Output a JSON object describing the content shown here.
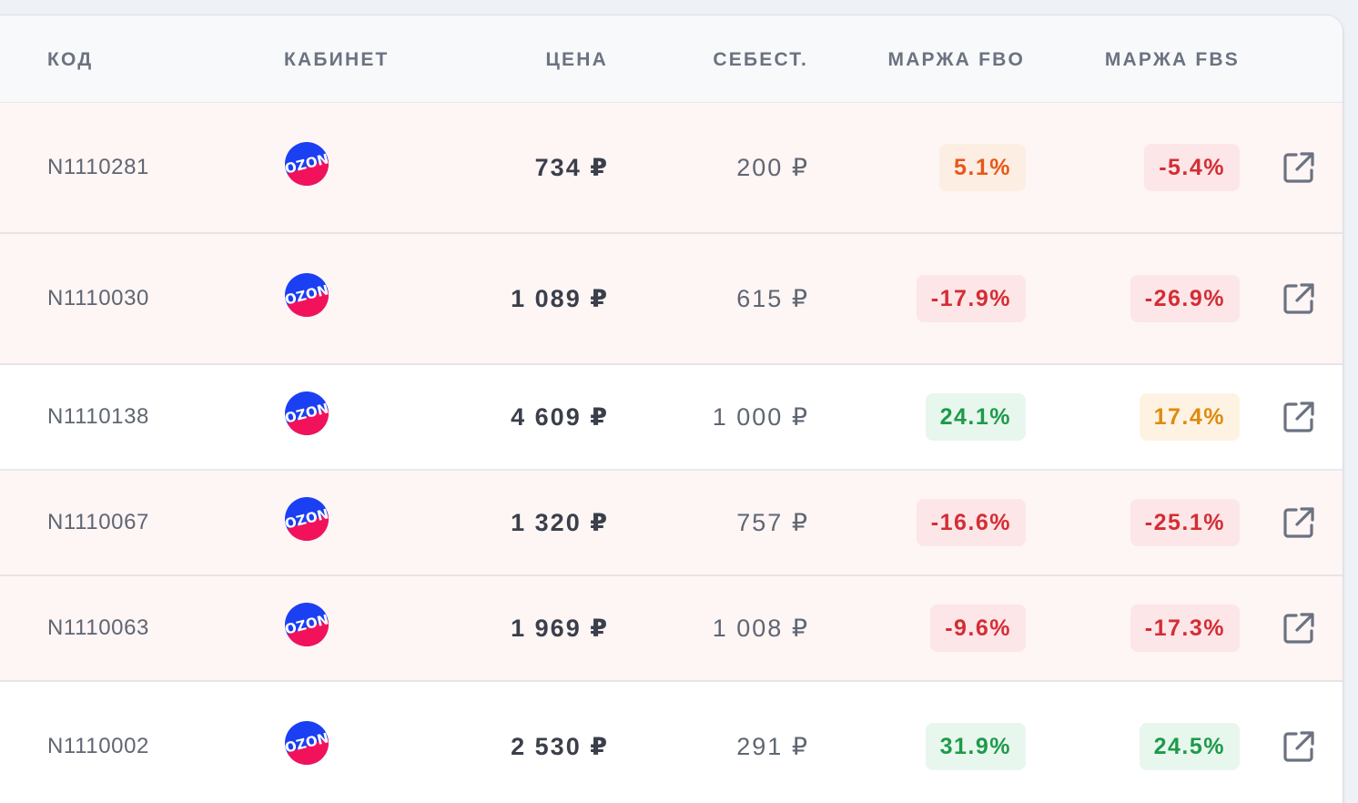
{
  "columns": {
    "code": "КОД",
    "cabinet": "КАБИНЕТ",
    "price": "ЦЕНА",
    "cost": "СЕБЕСТ.",
    "margin_fbo": "МАРЖА FBO",
    "margin_fbs": "МАРЖА FBS"
  },
  "cabinet_logo": {
    "text": "OZON",
    "colors": [
      "#1b3ff2",
      "#f2125c"
    ]
  },
  "status_colors": {
    "red": "#d42d35",
    "orange": "#e8571a",
    "amber": "#de8a10",
    "green": "#1e9a4a",
    "row_alert_bg": "#fef5f5"
  },
  "icons": {
    "row_action": "external-link-icon"
  },
  "rows": [
    {
      "code": "N1110281",
      "price": "734 ₽",
      "cost": "200 ₽",
      "fbo": "5.1%",
      "fbs": "-5.4%",
      "fbo_tone": "orange",
      "fbs_tone": "red",
      "alert": true
    },
    {
      "code": "N1110030",
      "price": "1 089 ₽",
      "cost": "615 ₽",
      "fbo": "-17.9%",
      "fbs": "-26.9%",
      "fbo_tone": "red",
      "fbs_tone": "red",
      "alert": true
    },
    {
      "code": "N1110138",
      "price": "4 609 ₽",
      "cost": "1 000 ₽",
      "fbo": "24.1%",
      "fbs": "17.4%",
      "fbo_tone": "green",
      "fbs_tone": "amber",
      "alert": false
    },
    {
      "code": "N1110067",
      "price": "1 320 ₽",
      "cost": "757 ₽",
      "fbo": "-16.6%",
      "fbs": "-25.1%",
      "fbo_tone": "red",
      "fbs_tone": "red",
      "alert": true
    },
    {
      "code": "N1110063",
      "price": "1 969 ₽",
      "cost": "1 008 ₽",
      "fbo": "-9.6%",
      "fbs": "-17.3%",
      "fbo_tone": "red",
      "fbs_tone": "red",
      "alert": true
    },
    {
      "code": "N1110002",
      "price": "2 530 ₽",
      "cost": "291 ₽",
      "fbo": "31.9%",
      "fbs": "24.5%",
      "fbo_tone": "green",
      "fbs_tone": "green",
      "alert": false
    }
  ]
}
